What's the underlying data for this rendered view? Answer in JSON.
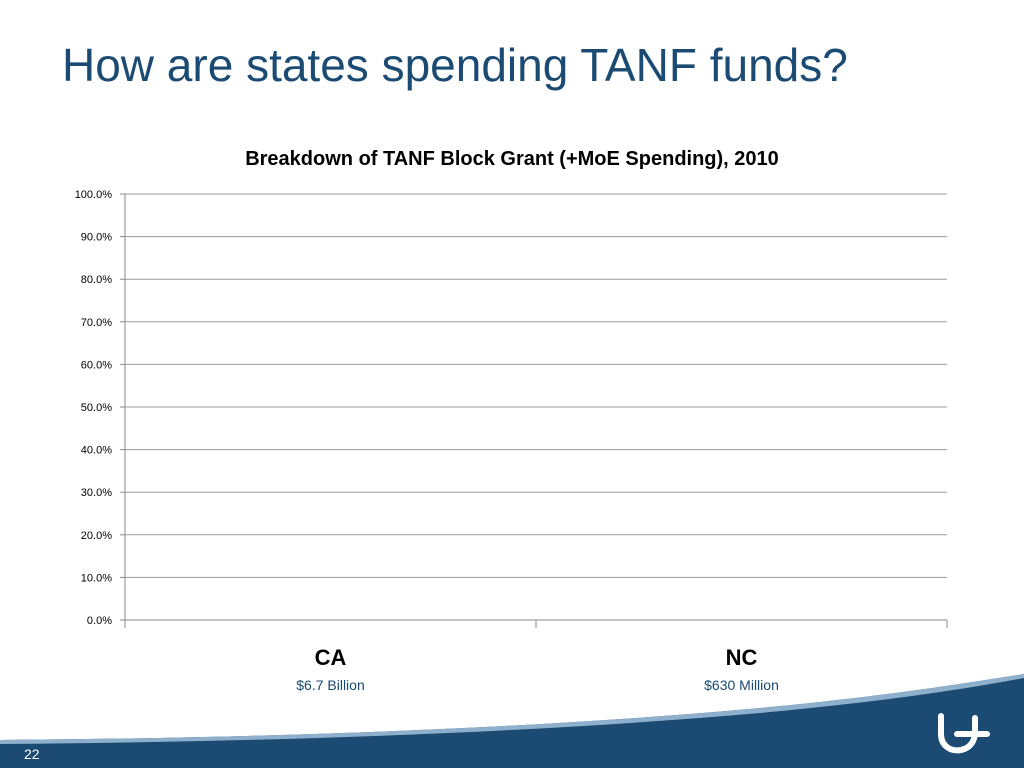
{
  "slide": {
    "title": "How are states spending TANF funds?",
    "page_number": "22",
    "accent_color": "#1b4a72"
  },
  "chart_data": {
    "type": "bar",
    "title": "Breakdown of TANF Block Grant (+MoE Spending), 2010",
    "categories": [
      "CA",
      "NC"
    ],
    "category_sublabels": [
      "$6.7 Billion",
      "$630 Million"
    ],
    "series": [],
    "ylim": [
      0,
      100
    ],
    "yticks": [
      "0.0%",
      "10.0%",
      "20.0%",
      "30.0%",
      "40.0%",
      "50.0%",
      "60.0%",
      "70.0%",
      "80.0%",
      "90.0%",
      "100.0%"
    ],
    "grid": true
  }
}
